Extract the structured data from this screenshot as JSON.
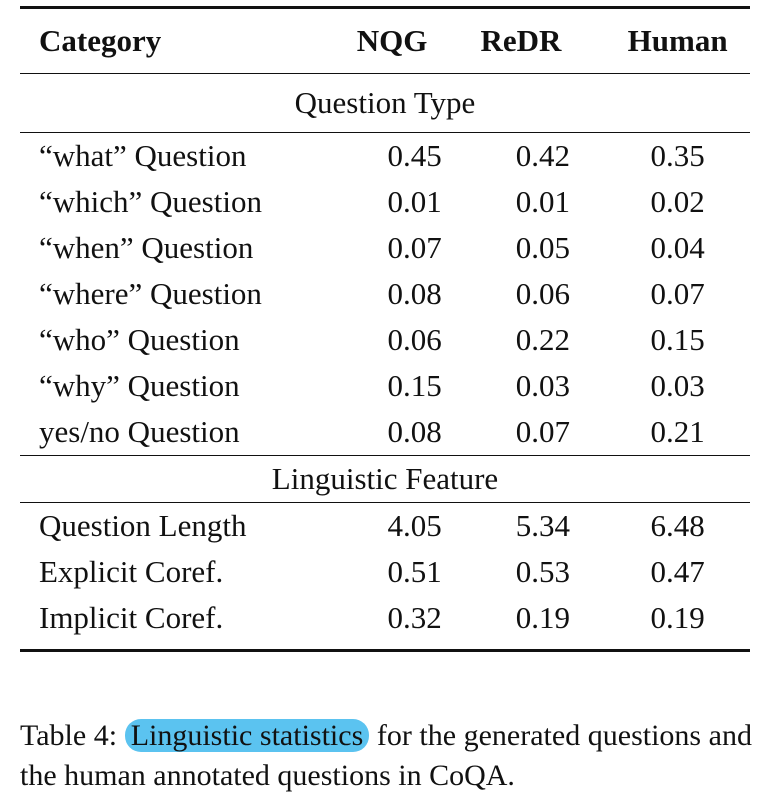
{
  "table": {
    "headers": [
      "Category",
      "NQG",
      "ReDR",
      "Human"
    ],
    "sections": [
      {
        "title": "Question Type",
        "rows": [
          {
            "category": "“what” Question",
            "nqg": "0.45",
            "redr": "0.42",
            "human": "0.35"
          },
          {
            "category": "“which” Question",
            "nqg": "0.01",
            "redr": "0.01",
            "human": "0.02"
          },
          {
            "category": "“when” Question",
            "nqg": "0.07",
            "redr": "0.05",
            "human": "0.04"
          },
          {
            "category": "“where” Question",
            "nqg": "0.08",
            "redr": "0.06",
            "human": "0.07"
          },
          {
            "category": "“who” Question",
            "nqg": "0.06",
            "redr": "0.22",
            "human": "0.15"
          },
          {
            "category": "“why” Question",
            "nqg": "0.15",
            "redr": "0.03",
            "human": "0.03"
          },
          {
            "category": "yes/no Question",
            "nqg": "0.08",
            "redr": "0.07",
            "human": "0.21"
          }
        ]
      },
      {
        "title": "Linguistic Feature",
        "rows": [
          {
            "category": "Question Length",
            "nqg": "4.05",
            "redr": "5.34",
            "human": "6.48"
          },
          {
            "category": "Explicit Coref.",
            "nqg": "0.51",
            "redr": "0.53",
            "human": "0.47"
          },
          {
            "category": "Implicit Coref.",
            "nqg": "0.32",
            "redr": "0.19",
            "human": "0.19"
          }
        ]
      }
    ]
  },
  "caption": {
    "label": "Table 4:",
    "highlight": "Linguistic statistics",
    "rest": "for the generated questions and the human annotated questions in CoQA.",
    "highlight_color": "#5bc3f0"
  }
}
